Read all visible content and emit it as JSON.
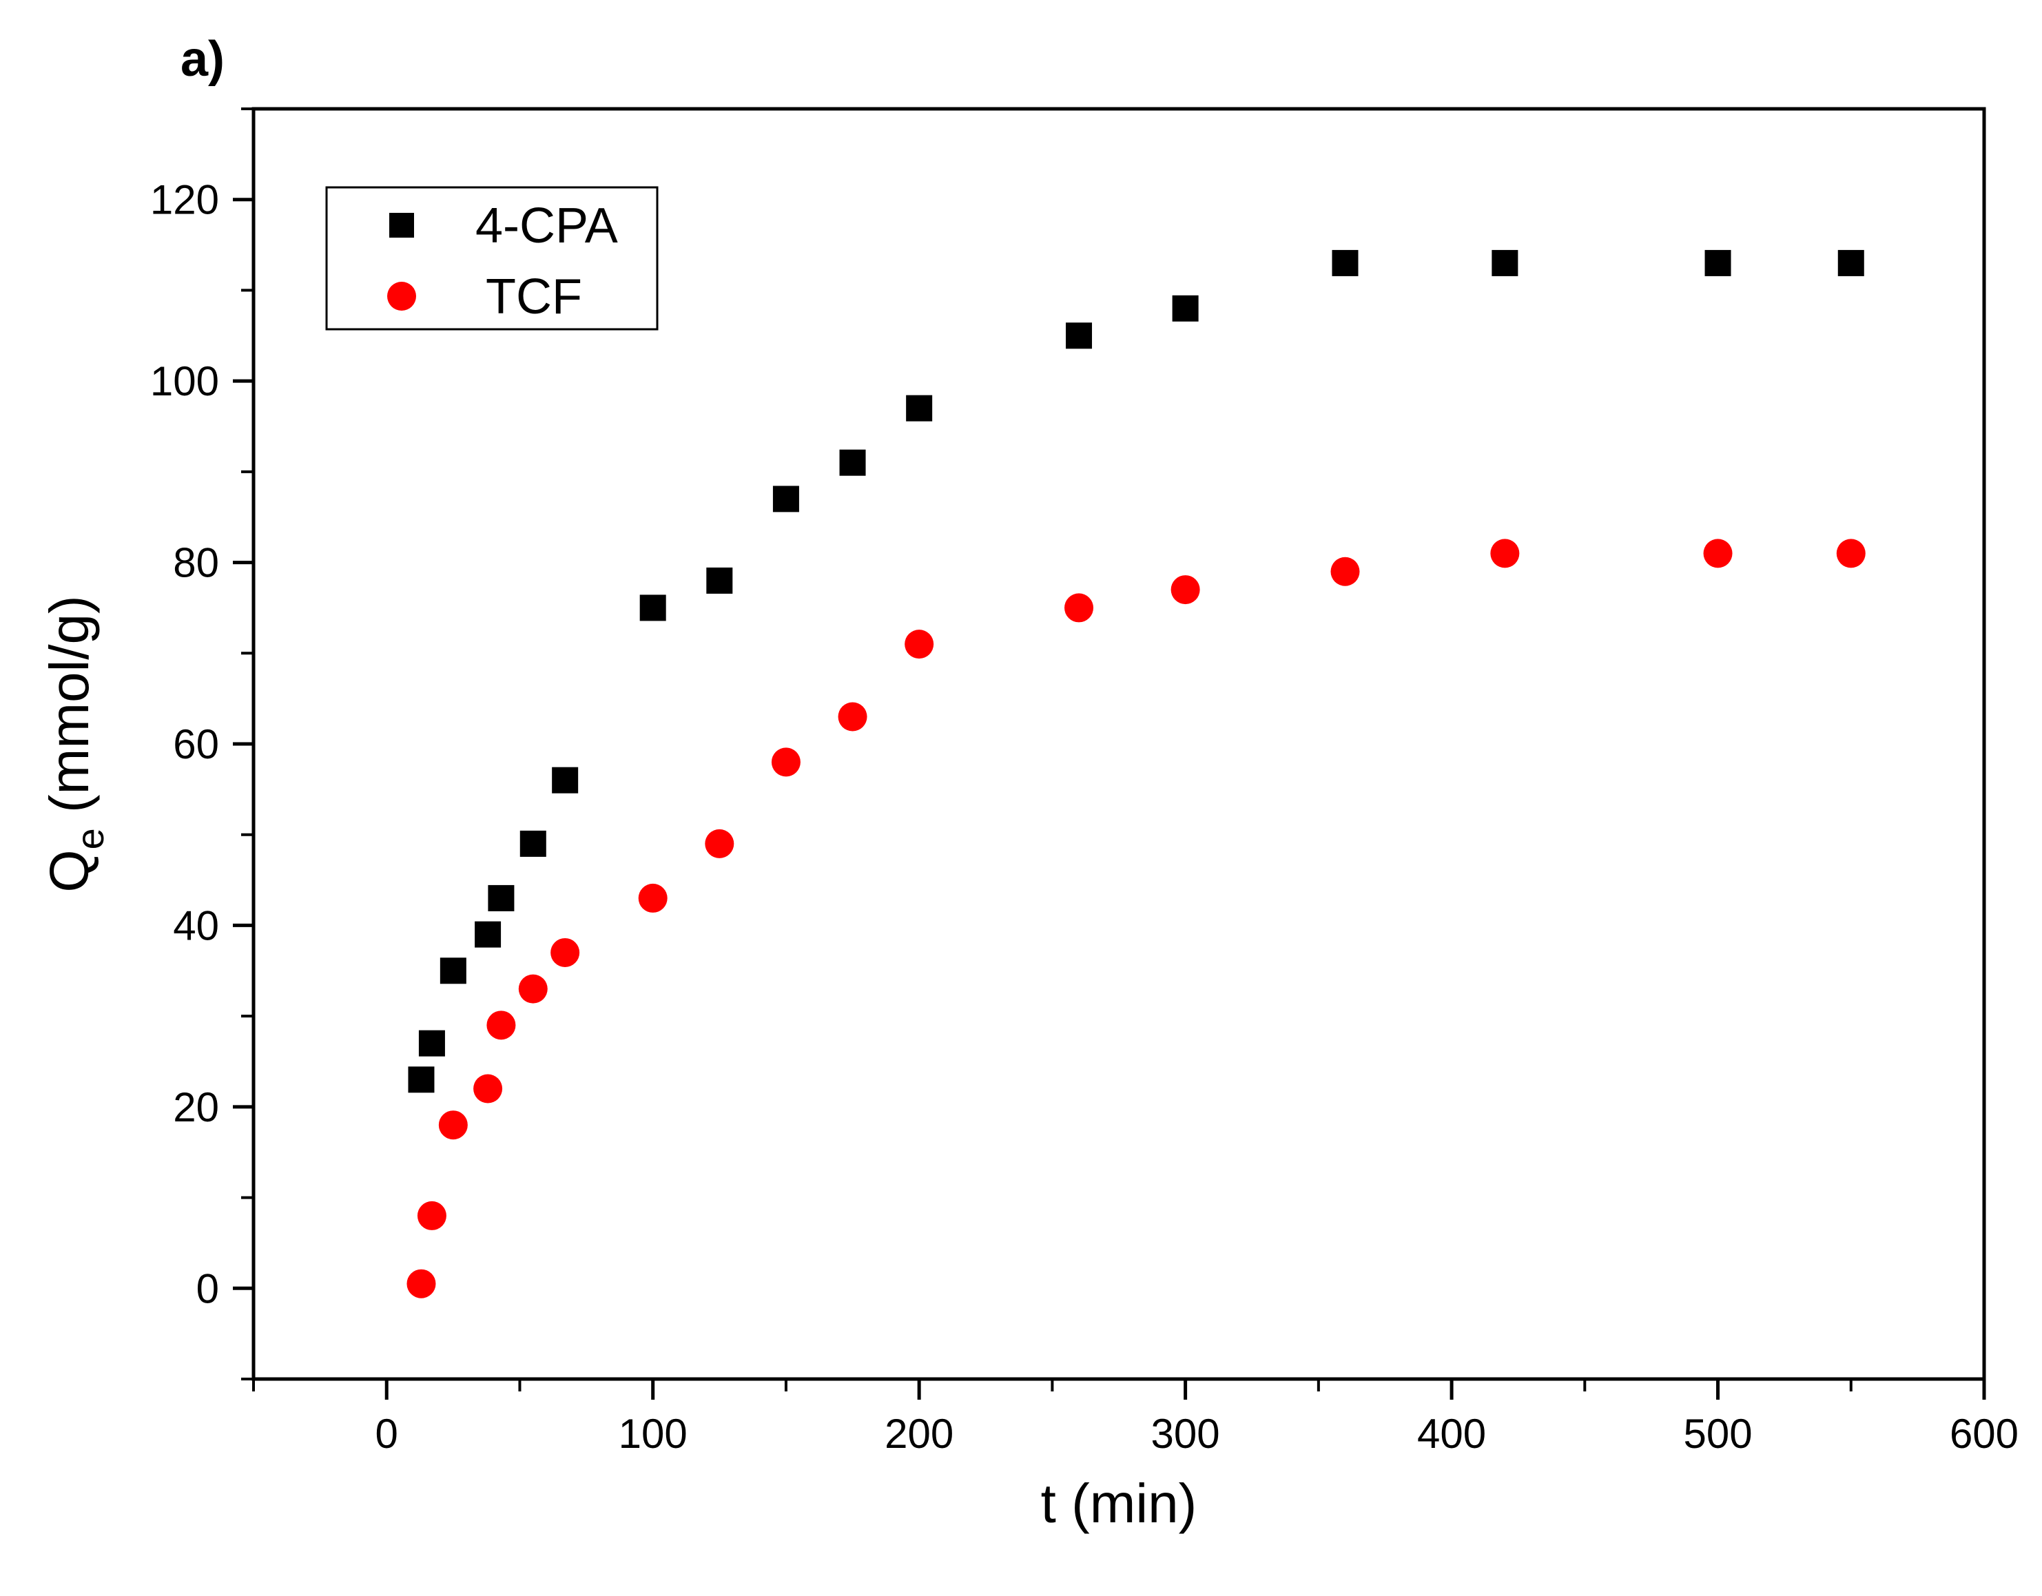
{
  "panel_label": "a)",
  "chart_data": {
    "type": "scatter",
    "title": "",
    "xlabel": "t (min)",
    "ylabel_main": "Q",
    "ylabel_sub": "e",
    "ylabel_unit": " (mmol/g)",
    "xlim": [
      -50,
      600
    ],
    "ylim": [
      -10,
      130
    ],
    "x_ticks": [
      0,
      100,
      200,
      300,
      400,
      500,
      600
    ],
    "x_tick_labels": [
      "0",
      "100",
      "200",
      "300",
      "400",
      "500",
      "600"
    ],
    "y_ticks": [
      0,
      20,
      40,
      60,
      80,
      100,
      120
    ],
    "y_tick_labels": [
      "0",
      "20",
      "40",
      "60",
      "80",
      "100",
      "120"
    ],
    "legend_position": "top-left",
    "series": [
      {
        "name": "4-CPA",
        "marker": "square",
        "color": "#000000",
        "x": [
          13,
          17,
          25,
          38,
          43,
          55,
          67,
          100,
          125,
          150,
          175,
          200,
          260,
          300,
          360,
          420,
          500,
          550
        ],
        "y": [
          23,
          27,
          35,
          39,
          43,
          49,
          56,
          75,
          78,
          87,
          91,
          97,
          105,
          108,
          113,
          113,
          113,
          113
        ]
      },
      {
        "name": "TCF",
        "marker": "circle",
        "color": "#ff0000",
        "x": [
          13,
          17,
          25,
          38,
          43,
          55,
          67,
          100,
          125,
          150,
          175,
          200,
          260,
          300,
          360,
          420,
          500,
          550
        ],
        "y": [
          0.5,
          8,
          18,
          22,
          29,
          33,
          37,
          43,
          49,
          58,
          63,
          71,
          75,
          77,
          79,
          81,
          81,
          81
        ]
      }
    ]
  }
}
